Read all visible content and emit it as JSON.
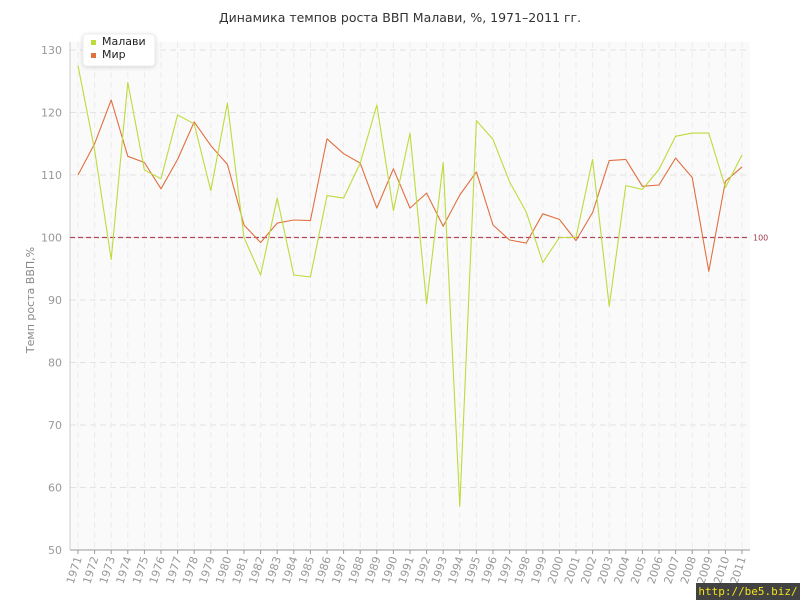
{
  "chart_data": {
    "type": "line",
    "title": "Динамика темпов роста ВВП Малави, %, 1971–2011 гг.",
    "ylabel": "Темп роста ВВП,%",
    "xlabel": "",
    "ylim": [
      50,
      130
    ],
    "yticks": [
      50,
      60,
      70,
      80,
      90,
      100,
      110,
      120,
      130
    ],
    "grid": true,
    "legend_position": "top-left",
    "reference_line": {
      "value": 100,
      "label": "100",
      "color": "#b04a5a"
    },
    "categories": [
      "1971",
      "1972",
      "1973",
      "1974",
      "1975",
      "1976",
      "1977",
      "1978",
      "1979",
      "1980",
      "1981",
      "1982",
      "1983",
      "1984",
      "1985",
      "1986",
      "1987",
      "1988",
      "1989",
      "1990",
      "1991",
      "1992",
      "1993",
      "1994",
      "1995",
      "1996",
      "1997",
      "1998",
      "1999",
      "2000",
      "2001",
      "2002",
      "2003",
      "2004",
      "2005",
      "2006",
      "2007",
      "2008",
      "2009",
      "2010",
      "2011"
    ],
    "series": [
      {
        "name": "Малави",
        "color": "#bcdc3c",
        "values": [
          127.5,
          114.0,
          96.5,
          124.8,
          110.8,
          109.4,
          119.6,
          118.2,
          107.5,
          121.5,
          100.0,
          94.0,
          106.3,
          94.0,
          93.7,
          106.7,
          106.3,
          111.9,
          121.2,
          104.3,
          116.7,
          89.4,
          112.0,
          57.0,
          118.7,
          115.7,
          108.9,
          104.1,
          96.0,
          100.0,
          100.0,
          112.5,
          89.0,
          108.3,
          107.7,
          110.9,
          116.2,
          116.7,
          116.7,
          108.0,
          113.2
        ]
      },
      {
        "name": "Мир",
        "color": "#e07040",
        "values": [
          110.0,
          115.0,
          122.0,
          113.0,
          112.0,
          107.8,
          112.5,
          118.5,
          114.7,
          111.7,
          102.0,
          99.2,
          102.3,
          102.8,
          102.7,
          115.8,
          113.4,
          111.9,
          104.7,
          111.0,
          104.7,
          107.1,
          101.8,
          106.8,
          110.5,
          102.0,
          99.6,
          99.1,
          103.8,
          102.9,
          99.5,
          104.0,
          112.3,
          112.5,
          108.2,
          108.4,
          112.7,
          109.6,
          94.6,
          109.0,
          111.3
        ]
      }
    ]
  },
  "watermark": "http://be5.biz/"
}
